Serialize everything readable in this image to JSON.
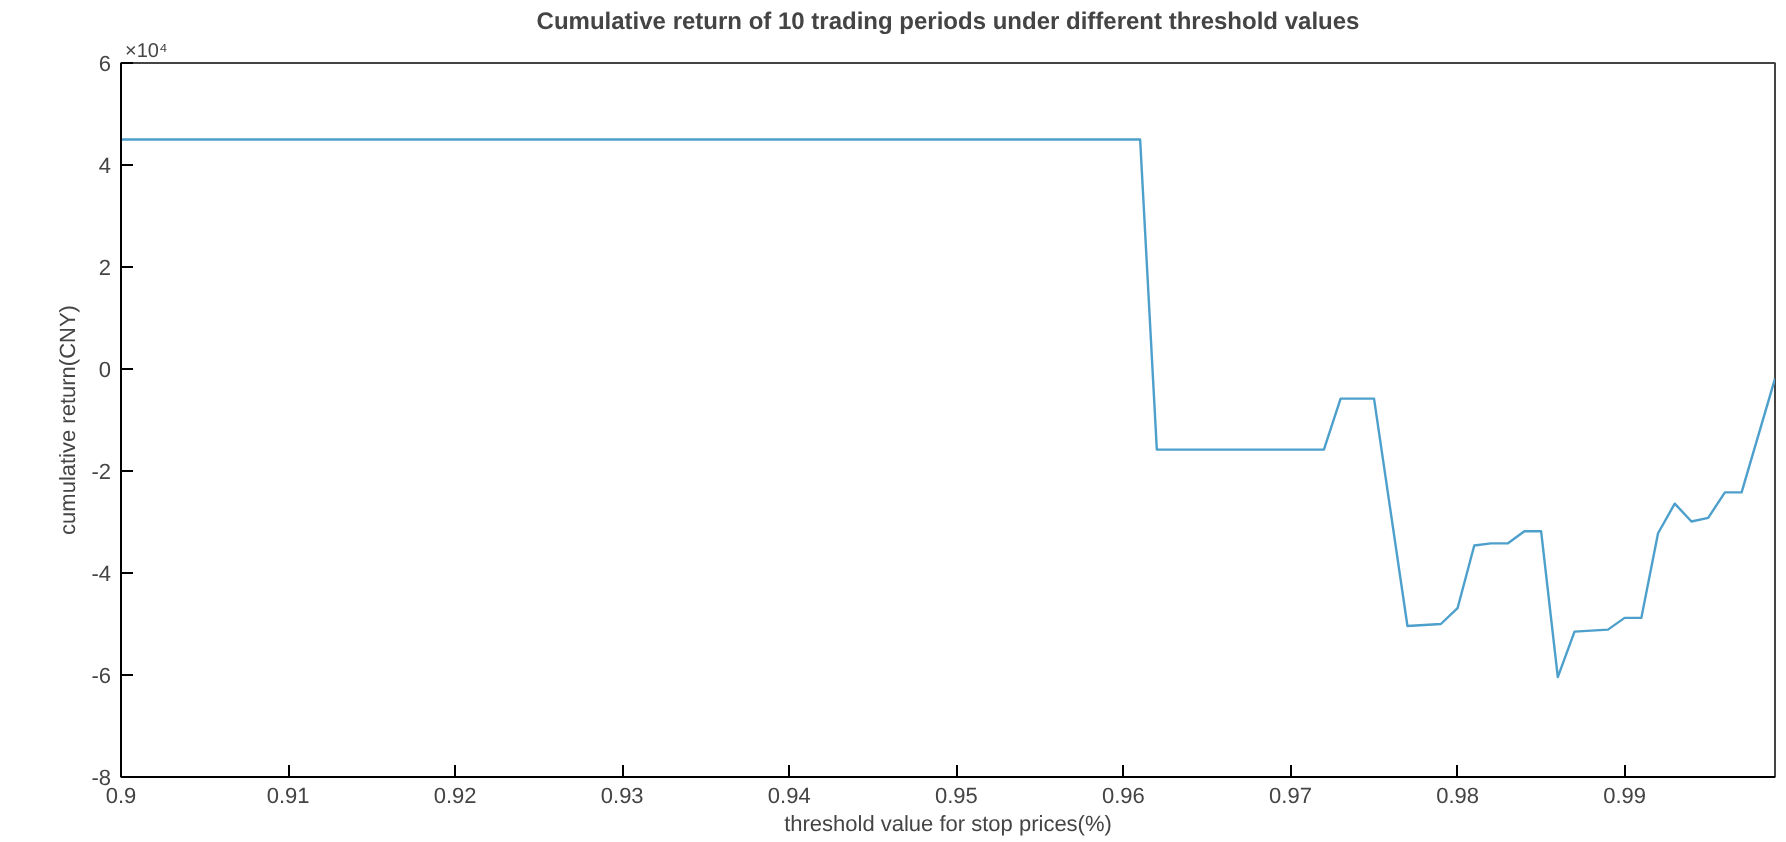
{
  "chart_data": {
    "type": "line",
    "title": "Cumulative return of 10 trading periods under different threshold values",
    "xlabel": "threshold value for stop prices(%)",
    "ylabel": "cumulative return(CNY)",
    "annotations": [
      "×10⁴"
    ],
    "x": [
      0.9,
      0.961,
      0.962,
      0.972,
      0.973,
      0.975,
      0.977,
      0.979,
      0.98,
      0.981,
      0.982,
      0.983,
      0.984,
      0.985,
      0.986,
      0.987,
      0.989,
      0.99,
      0.991,
      0.992,
      0.993,
      0.994,
      0.995,
      0.996,
      0.997,
      0.999
    ],
    "series": [
      {
        "color": "#4d9fcc",
        "values": [
          4.5,
          4.5,
          -1.58,
          -1.58,
          -0.58,
          -0.58,
          -5.04,
          -5.0,
          -4.69,
          -3.46,
          -3.42,
          -3.42,
          -3.18,
          -3.18,
          -6.04,
          -5.15,
          -5.11,
          -4.88,
          -4.88,
          -3.22,
          -2.64,
          -2.99,
          -2.92,
          -2.42,
          -2.42,
          -0.19
        ]
      }
    ],
    "xlim": [
      0.9,
      0.999
    ],
    "ylim": [
      -8,
      6
    ],
    "xticks": [
      0.9,
      0.91,
      0.92,
      0.93,
      0.94,
      0.95,
      0.96,
      0.97,
      0.98,
      0.99
    ],
    "yticks": [
      -8,
      -6,
      -4,
      -2,
      0,
      2,
      4,
      6
    ],
    "grid": false,
    "marker": "none",
    "line_style": "solid"
  }
}
